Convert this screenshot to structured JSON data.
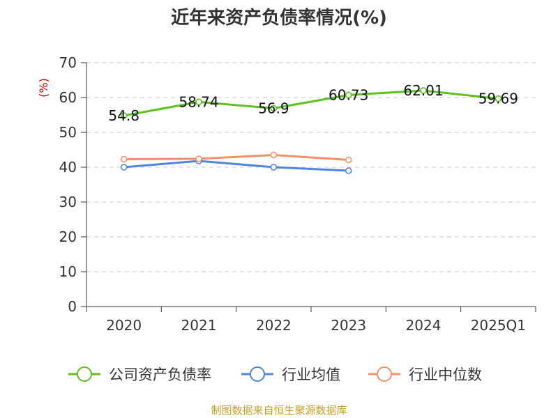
{
  "chart_data": {
    "type": "line",
    "title": "近年来资产负债率情况(%)",
    "ylabel": "(%)",
    "xlabel": "",
    "categories": [
      "2020",
      "2021",
      "2022",
      "2023",
      "2024",
      "2025Q1"
    ],
    "ylim": [
      0,
      70
    ],
    "yticks": [
      0,
      10,
      20,
      30,
      40,
      50,
      60,
      70
    ],
    "grid": true,
    "legend_position": "bottom",
    "series": [
      {
        "name": "公司资产负债率",
        "color": "#5cc21e",
        "values": [
          54.8,
          58.74,
          56.9,
          60.73,
          62.01,
          59.69
        ],
        "labels": [
          "54.8",
          "58.74",
          "56.9",
          "60.73",
          "62.01",
          "59.69"
        ]
      },
      {
        "name": "行业均值",
        "color": "#4f86dd",
        "values": [
          40.0,
          41.8,
          40.0,
          39.0,
          null,
          null
        ]
      },
      {
        "name": "行业中位数",
        "color": "#f5916a",
        "values": [
          42.3,
          42.4,
          43.5,
          42.1,
          null,
          null
        ]
      }
    ],
    "source": "制图数据来自恒生聚源数据库"
  }
}
